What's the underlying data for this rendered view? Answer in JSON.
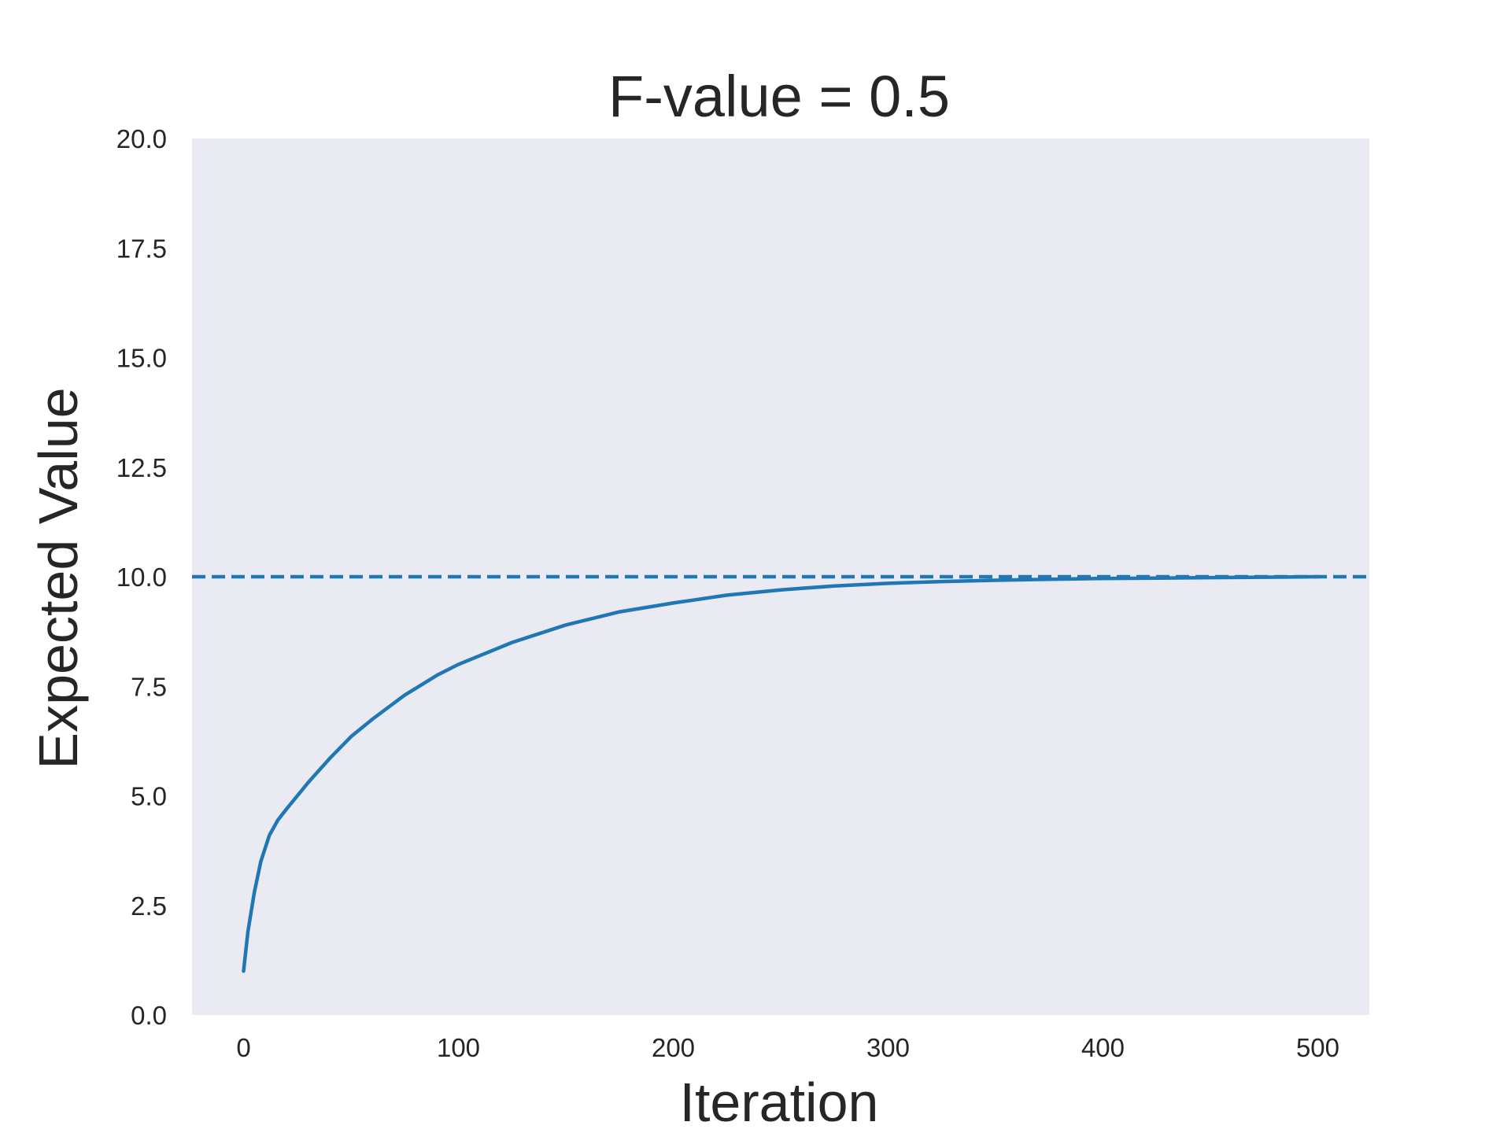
{
  "chart_data": {
    "type": "line",
    "title": "F-value = 0.5",
    "xlabel": "Iteration",
    "ylabel": "Expected Value",
    "xlim": [
      -24,
      524
    ],
    "ylim": [
      0,
      20
    ],
    "xticks": [
      0,
      100,
      200,
      300,
      400,
      500
    ],
    "xtick_labels": [
      "0",
      "100",
      "200",
      "300",
      "400",
      "500"
    ],
    "yticks": [
      0,
      2.5,
      5,
      7.5,
      10,
      12.5,
      15,
      17.5,
      20
    ],
    "ytick_labels": [
      "0.0",
      "2.5",
      "5.0",
      "7.5",
      "10.0",
      "12.5",
      "15.0",
      "17.5",
      "20.0"
    ],
    "grid": false,
    "background": "#eaeaf2",
    "series": [
      {
        "style": "solid",
        "color": "#1f77b4",
        "x": [
          0,
          2,
          5,
          8,
          12,
          16,
          20,
          30,
          40,
          50,
          60,
          75,
          90,
          100,
          125,
          150,
          175,
          200,
          225,
          250,
          275,
          300,
          325,
          350,
          375,
          400,
          425,
          450,
          475,
          500
        ],
        "y": [
          1.0,
          1.9,
          2.8,
          3.5,
          4.1,
          4.45,
          4.7,
          5.3,
          5.85,
          6.35,
          6.75,
          7.3,
          7.75,
          8.0,
          8.5,
          8.9,
          9.2,
          9.4,
          9.58,
          9.7,
          9.79,
          9.85,
          9.89,
          9.92,
          9.94,
          9.96,
          9.97,
          9.98,
          9.99,
          10.0
        ]
      },
      {
        "style": "dashed",
        "color": "#1f77b4",
        "reference_line": "horizontal",
        "y_value": 10.0
      }
    ]
  }
}
